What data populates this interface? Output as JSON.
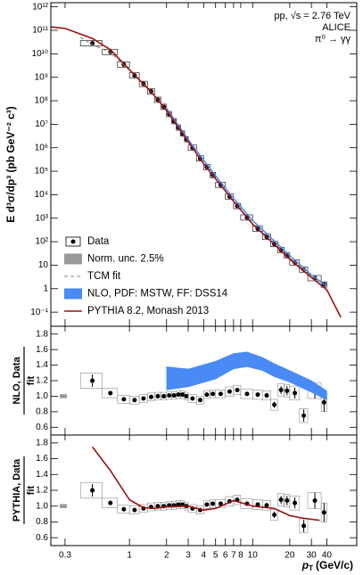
{
  "chart_data": [
    {
      "type": "spectrum",
      "log_y": true,
      "ylabel": "E d³σ/dp³ (pb GeV⁻² c³)",
      "ylim": [
        0.025,
        1500000000000.0
      ],
      "yticks": [
        {
          "value": 0.1,
          "label": "10⁻¹"
        },
        1,
        10,
        {
          "value": 100,
          "label": "10²"
        },
        {
          "value": 1000,
          "label": "10³"
        },
        {
          "value": 10000,
          "label": "10⁴"
        },
        {
          "value": 100000,
          "label": "10⁵"
        },
        {
          "value": 1000000,
          "label": "10⁶"
        },
        {
          "value": 10000000,
          "label": "10⁷"
        },
        {
          "value": 100000000,
          "label": "10⁸"
        },
        {
          "value": 1000000000,
          "label": "10⁹"
        },
        {
          "value": 10000000000,
          "label": "10¹⁰"
        },
        {
          "value": 100000000000,
          "label": "10¹¹"
        },
        {
          "value": 1000000000000,
          "label": "10¹²"
        }
      ],
      "annotations": [
        "pp, √s = 2.76 TeV",
        "ALICE",
        "π⁰ → γγ"
      ],
      "legend": "lower left",
      "series": [
        {
          "name": "Data",
          "color": "#000000",
          "style": "points",
          "x": [
            0.5,
            0.7,
            0.9,
            1.1,
            1.3,
            1.5,
            1.7,
            1.9,
            2.1,
            2.3,
            2.5,
            2.7,
            2.9,
            3.25,
            3.75,
            4.25,
            4.75,
            5.5,
            6.5,
            7.5,
            9,
            11,
            13,
            15,
            17,
            19,
            22,
            26,
            32,
            38
          ],
          "bin_edges": [
            0.4,
            0.6,
            0.8,
            1.0,
            1.2,
            1.4,
            1.6,
            1.8,
            2.0,
            2.2,
            2.4,
            2.6,
            2.8,
            3.0,
            3.5,
            4.0,
            4.5,
            5.0,
            6.0,
            7.0,
            8.0,
            10,
            12,
            14,
            16,
            18,
            20,
            24,
            28,
            36,
            40
          ],
          "values": [
            28000000000.0,
            12000000000.0,
            3500000000.0,
            1200000000.0,
            520000000.0,
            250000000.0,
            110000000.0,
            55000000.0,
            27000000.0,
            13500000.0,
            7200000.0,
            4000000.0,
            2300000.0,
            1000000.0,
            350000.0,
            150000.0,
            69000.0,
            26000.0,
            8300,
            3300,
            1070,
            355,
            160,
            79,
            44,
            26,
            13,
            6.5,
            2.8,
            1.5
          ]
        },
        {
          "name": "Norm. unc. 2.5%",
          "color": "#999999"
        },
        {
          "name": "TCM fit",
          "color": "#808080",
          "style": "dashed",
          "x": [
            0.4,
            0.5,
            0.7,
            1,
            1.5,
            2,
            3,
            4,
            5,
            7,
            10,
            15,
            20,
            30,
            40
          ],
          "values": [
            50000000000.0,
            24000000000.0,
            11500000000.0,
            2000000000.0,
            250000000.0,
            40000000.0,
            1800000.0,
            220000.0,
            50000.0,
            5000,
            560,
            80,
            20,
            3.5,
            1.25
          ]
        },
        {
          "name": "NLO, PDF: MSTW, FF: DSS14",
          "color": "#4a8af4",
          "style": "band",
          "x": [
            2,
            3,
            5,
            7,
            10,
            15,
            20,
            30,
            40
          ],
          "low": [
            42000000.0,
            2000000.0,
            60000.0,
            6500,
            740,
            100,
            24,
            3.7,
            1.2
          ],
          "high": [
            52000000.0,
            2400000.0,
            70000.0,
            7500,
            850,
            115,
            27,
            4.1,
            1.35
          ]
        },
        {
          "name": "PYTHIA 8.2, Monash 2013",
          "color": "#9b1111",
          "style": "line",
          "x": [
            0.23,
            0.3,
            0.5,
            0.7,
            1,
            1.5,
            2,
            3,
            4,
            5,
            7,
            10,
            15,
            20,
            30,
            40,
            52
          ],
          "values": [
            140000000000.0,
            120000000000.0,
            45000000000.0,
            15000000000.0,
            2100000000.0,
            240000000.0,
            39000000.0,
            1800000.0,
            210000.0,
            48000.0,
            5200,
            560,
            77,
            18,
            3.0,
            0.9,
            0.06
          ]
        }
      ]
    },
    {
      "type": "ratio",
      "ylabel_num": "NLO, Data",
      "ylabel_den": "fit",
      "ylim": [
        0.5,
        1.9
      ],
      "yticks": [
        0.6,
        0.8,
        {
          "value": 1,
          "label": "1.0"
        },
        1.2,
        1.4,
        1.6,
        1.8
      ],
      "norm_unc": 2.5,
      "series": [
        {
          "color": "#000000",
          "style": "points",
          "values": [
            1.2,
            1.04,
            0.96,
            0.95,
            0.97,
            0.99,
            1.0,
            1.0,
            1.01,
            1.01,
            1.02,
            1.02,
            1.0,
            0.97,
            0.95,
            1.02,
            1.03,
            1.03,
            1.06,
            1.08,
            1.03,
            1.02,
            1.01,
            0.89,
            1.08,
            1.07,
            1.04,
            0.75,
            1.07,
            0.92
          ],
          "stat_err": [
            0.08,
            0.02,
            0.01,
            0.01,
            0.01,
            0.01,
            0.01,
            0.01,
            0.01,
            0.01,
            0.01,
            0.01,
            0.01,
            0.01,
            0.01,
            0.01,
            0.01,
            0.01,
            0.01,
            0.02,
            0.02,
            0.02,
            0.03,
            0.04,
            0.05,
            0.06,
            0.07,
            0.08,
            0.1,
            0.12
          ],
          "sys_err": [
            0.1,
            0.06,
            0.05,
            0.05,
            0.05,
            0.05,
            0.05,
            0.05,
            0.05,
            0.05,
            0.05,
            0.05,
            0.05,
            0.05,
            0.05,
            0.05,
            0.05,
            0.05,
            0.06,
            0.06,
            0.06,
            0.06,
            0.06,
            0.07,
            0.08,
            0.08,
            0.09,
            0.09,
            0.1,
            0.12
          ]
        },
        {
          "color": "#4a8af4",
          "style": "band",
          "x": [
            2,
            3,
            5,
            7,
            9,
            12,
            15,
            20,
            30,
            40
          ],
          "low": [
            1.08,
            1.12,
            1.22,
            1.35,
            1.38,
            1.33,
            1.25,
            1.18,
            1.05,
            0.95
          ],
          "high": [
            1.38,
            1.35,
            1.45,
            1.55,
            1.57,
            1.5,
            1.42,
            1.33,
            1.2,
            1.07
          ]
        }
      ]
    },
    {
      "type": "ratio",
      "ylabel_num": "PYTHIA, Data",
      "ylabel_den": "fit",
      "ylim": [
        0.5,
        1.9
      ],
      "yticks": [
        0.6,
        0.8,
        {
          "value": 1,
          "label": "1.0"
        },
        1.2,
        1.4,
        1.6,
        1.8
      ],
      "norm_unc": 2.5,
      "log_x": true,
      "xlim": [
        0.23,
        70
      ],
      "xticks": [
        0.3,
        1,
        2,
        3,
        4,
        5,
        6,
        7,
        8,
        10,
        20,
        30,
        40
      ],
      "x_label_symbol": "p",
      "x_label_sub": "T",
      "x_label_unit": "(GeV/c)",
      "series": [
        {
          "color": "#000000",
          "style": "points",
          "values": [
            1.2,
            1.04,
            0.96,
            0.95,
            0.97,
            0.99,
            1.0,
            1.0,
            1.01,
            1.01,
            1.02,
            1.02,
            1.0,
            0.97,
            0.95,
            1.02,
            1.03,
            1.03,
            1.06,
            1.08,
            1.03,
            1.02,
            1.01,
            0.89,
            1.08,
            1.07,
            1.04,
            0.75,
            1.07,
            0.92
          ],
          "stat_err": [
            0.08,
            0.02,
            0.01,
            0.01,
            0.01,
            0.01,
            0.01,
            0.01,
            0.01,
            0.01,
            0.01,
            0.01,
            0.01,
            0.01,
            0.01,
            0.01,
            0.01,
            0.01,
            0.01,
            0.02,
            0.02,
            0.02,
            0.03,
            0.04,
            0.05,
            0.06,
            0.07,
            0.08,
            0.1,
            0.12
          ],
          "sys_err": [
            0.1,
            0.06,
            0.05,
            0.05,
            0.05,
            0.05,
            0.05,
            0.05,
            0.05,
            0.05,
            0.05,
            0.05,
            0.05,
            0.05,
            0.05,
            0.05,
            0.05,
            0.05,
            0.06,
            0.06,
            0.06,
            0.06,
            0.06,
            0.07,
            0.08,
            0.08,
            0.09,
            0.09,
            0.1,
            0.12
          ]
        },
        {
          "color": "#9b1111",
          "style": "line",
          "x": [
            0.5,
            0.7,
            1,
            1.3,
            1.6,
            2,
            3,
            4,
            5,
            7,
            10,
            15,
            20,
            25,
            35
          ],
          "values": [
            1.75,
            1.45,
            1.08,
            0.98,
            0.97,
            0.99,
            1.0,
            0.95,
            0.97,
            1.07,
            1.0,
            0.97,
            0.88,
            0.85,
            0.82
          ]
        }
      ]
    }
  ]
}
